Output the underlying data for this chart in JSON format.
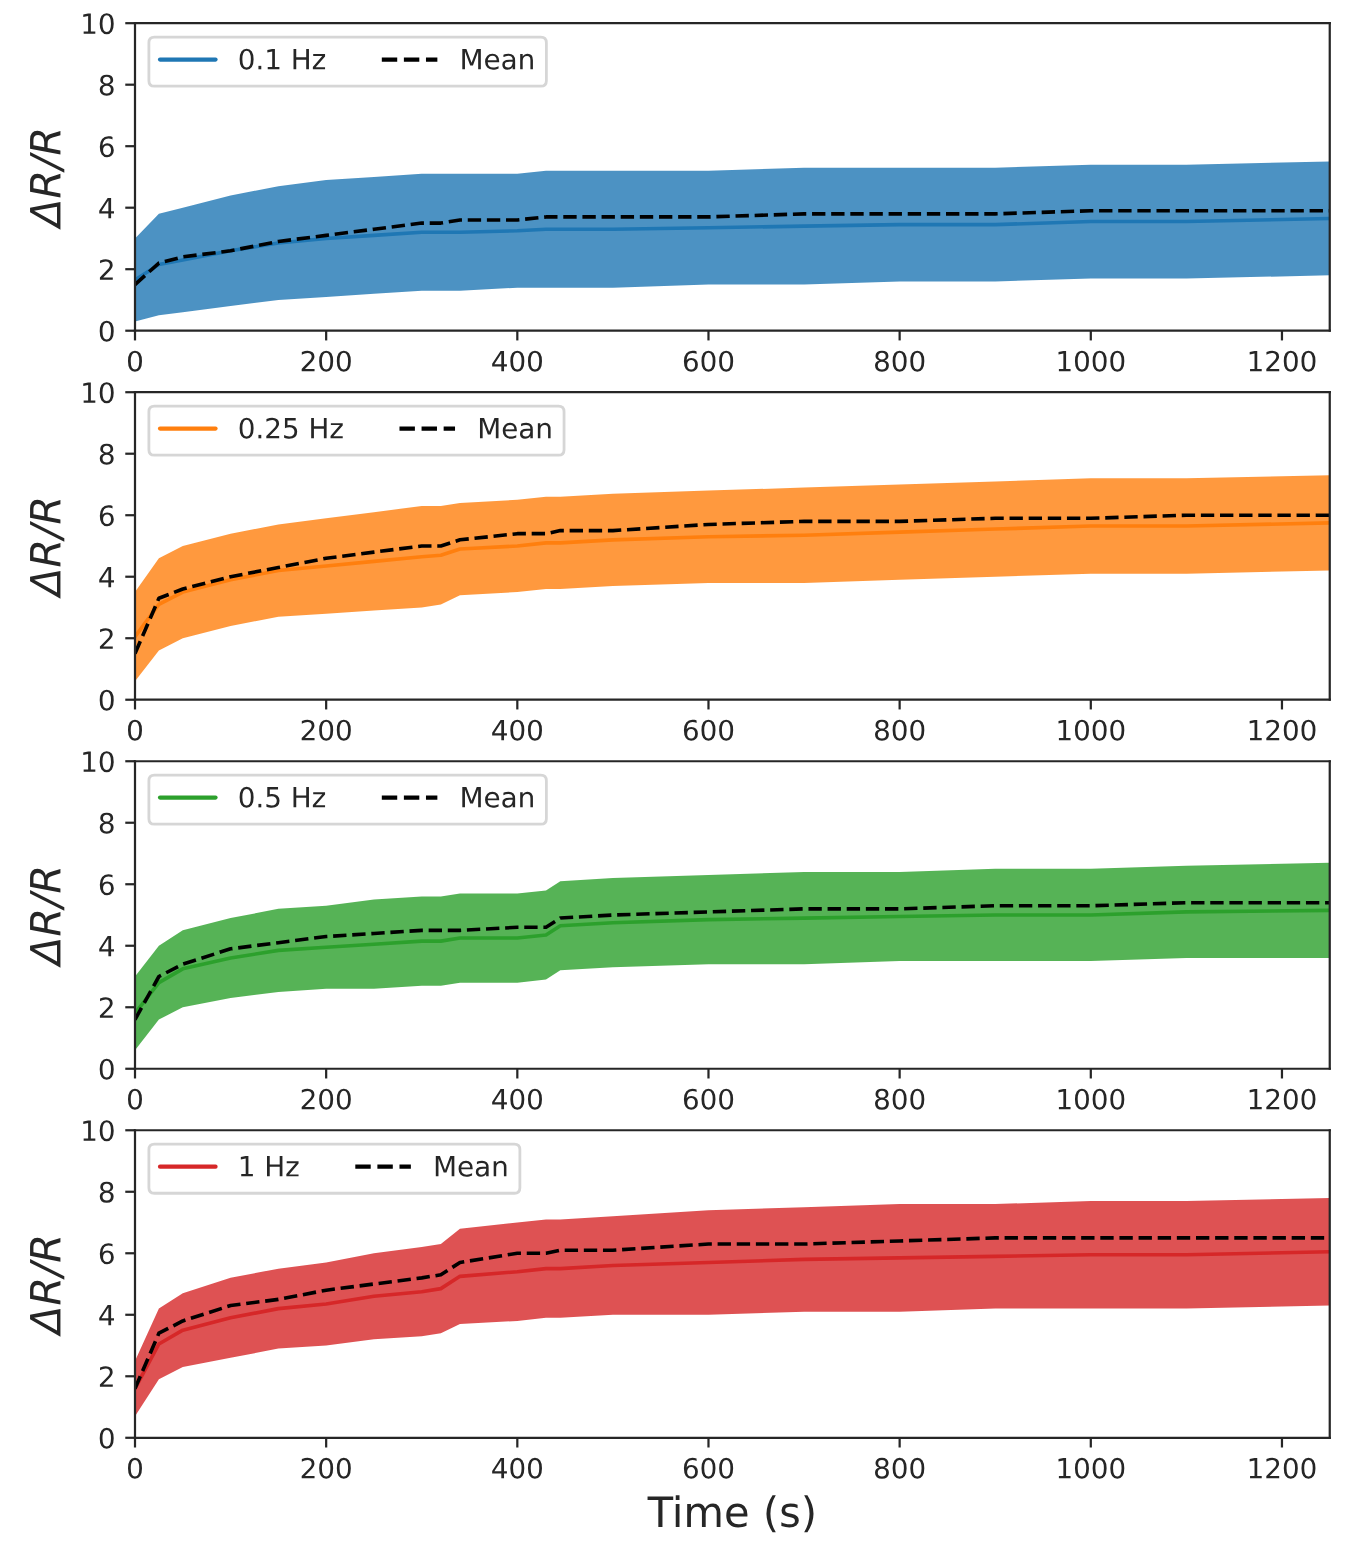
{
  "chart_data": [
    {
      "type": "line",
      "ylabel": "ΔR/R",
      "xlim": [
        0,
        1250
      ],
      "xticks": [
        0,
        200,
        400,
        600,
        800,
        1000,
        1200
      ],
      "ylim": [
        0,
        10
      ],
      "yticks": [
        0,
        2,
        4,
        6,
        8,
        10
      ],
      "legend": "top left",
      "x": [
        0,
        25,
        50,
        100,
        150,
        200,
        250,
        300,
        320,
        340,
        400,
        430,
        445,
        500,
        600,
        700,
        800,
        900,
        1000,
        1100,
        1250
      ],
      "series": [
        {
          "name": "0.1 Hz",
          "color": "#1f77b4",
          "values": [
            1.65,
            2.15,
            2.3,
            2.6,
            2.85,
            3.0,
            3.1,
            3.2,
            3.2,
            3.2,
            3.25,
            3.3,
            3.3,
            3.3,
            3.35,
            3.4,
            3.45,
            3.45,
            3.55,
            3.55,
            3.65
          ],
          "lower": [
            0.3,
            0.5,
            0.6,
            0.8,
            1.0,
            1.1,
            1.2,
            1.3,
            1.3,
            1.3,
            1.4,
            1.4,
            1.4,
            1.4,
            1.5,
            1.5,
            1.6,
            1.6,
            1.7,
            1.7,
            1.8
          ],
          "upper": [
            3.0,
            3.8,
            4.0,
            4.4,
            4.7,
            4.9,
            5.0,
            5.1,
            5.1,
            5.1,
            5.1,
            5.2,
            5.2,
            5.2,
            5.2,
            5.3,
            5.3,
            5.3,
            5.4,
            5.4,
            5.5
          ]
        },
        {
          "name": "Mean",
          "color": "#000000",
          "line_style": "dashed",
          "values": [
            1.5,
            2.2,
            2.4,
            2.6,
            2.9,
            3.1,
            3.3,
            3.5,
            3.5,
            3.6,
            3.6,
            3.7,
            3.7,
            3.7,
            3.7,
            3.8,
            3.8,
            3.8,
            3.9,
            3.9,
            3.9
          ]
        }
      ]
    },
    {
      "type": "line",
      "ylabel": "ΔR/R",
      "xlim": [
        0,
        1250
      ],
      "xticks": [
        0,
        200,
        400,
        600,
        800,
        1000,
        1200
      ],
      "ylim": [
        0,
        10
      ],
      "yticks": [
        0,
        2,
        4,
        6,
        8,
        10
      ],
      "legend": "top left",
      "x": [
        0,
        25,
        50,
        100,
        150,
        200,
        250,
        300,
        320,
        340,
        400,
        430,
        445,
        500,
        600,
        700,
        800,
        900,
        1000,
        1100,
        1250
      ],
      "series": [
        {
          "name": "0.25 Hz",
          "color": "#ff7f0e",
          "values": [
            2.05,
            3.1,
            3.5,
            3.9,
            4.2,
            4.35,
            4.5,
            4.65,
            4.7,
            4.9,
            5.0,
            5.1,
            5.1,
            5.2,
            5.3,
            5.35,
            5.45,
            5.55,
            5.65,
            5.65,
            5.75
          ],
          "lower": [
            0.6,
            1.6,
            2.0,
            2.4,
            2.7,
            2.8,
            2.9,
            3.0,
            3.1,
            3.4,
            3.5,
            3.6,
            3.6,
            3.7,
            3.8,
            3.8,
            3.9,
            4.0,
            4.1,
            4.1,
            4.2
          ],
          "upper": [
            3.5,
            4.6,
            5.0,
            5.4,
            5.7,
            5.9,
            6.1,
            6.3,
            6.3,
            6.4,
            6.5,
            6.6,
            6.6,
            6.7,
            6.8,
            6.9,
            7.0,
            7.1,
            7.2,
            7.2,
            7.3
          ]
        },
        {
          "name": "Mean",
          "color": "#000000",
          "line_style": "dashed",
          "values": [
            1.5,
            3.3,
            3.6,
            4.0,
            4.3,
            4.6,
            4.8,
            5.0,
            5.0,
            5.2,
            5.4,
            5.4,
            5.5,
            5.5,
            5.7,
            5.8,
            5.8,
            5.9,
            5.9,
            6.0,
            6.0
          ]
        }
      ]
    },
    {
      "type": "line",
      "ylabel": "ΔR/R",
      "xlim": [
        0,
        1250
      ],
      "xticks": [
        0,
        200,
        400,
        600,
        800,
        1000,
        1200
      ],
      "ylim": [
        0,
        10
      ],
      "yticks": [
        0,
        2,
        4,
        6,
        8,
        10
      ],
      "legend": "top left",
      "x": [
        0,
        25,
        50,
        100,
        150,
        200,
        250,
        300,
        320,
        340,
        400,
        430,
        445,
        500,
        600,
        700,
        800,
        900,
        1000,
        1100,
        1250
      ],
      "series": [
        {
          "name": "0.5 Hz",
          "color": "#2ca02c",
          "values": [
            1.8,
            2.8,
            3.25,
            3.6,
            3.85,
            3.95,
            4.05,
            4.15,
            4.15,
            4.25,
            4.25,
            4.35,
            4.65,
            4.75,
            4.85,
            4.9,
            4.95,
            5.0,
            5.0,
            5.1,
            5.15
          ],
          "lower": [
            0.6,
            1.6,
            2.0,
            2.3,
            2.5,
            2.6,
            2.6,
            2.7,
            2.7,
            2.8,
            2.8,
            2.9,
            3.2,
            3.3,
            3.4,
            3.4,
            3.5,
            3.5,
            3.5,
            3.6,
            3.6
          ],
          "upper": [
            3.0,
            4.0,
            4.5,
            4.9,
            5.2,
            5.3,
            5.5,
            5.6,
            5.6,
            5.7,
            5.7,
            5.8,
            6.1,
            6.2,
            6.3,
            6.4,
            6.4,
            6.5,
            6.5,
            6.6,
            6.7
          ]
        },
        {
          "name": "Mean",
          "color": "#000000",
          "line_style": "dashed",
          "values": [
            1.6,
            3.0,
            3.4,
            3.9,
            4.1,
            4.3,
            4.4,
            4.5,
            4.5,
            4.5,
            4.6,
            4.6,
            4.9,
            5.0,
            5.1,
            5.2,
            5.2,
            5.3,
            5.3,
            5.4,
            5.4
          ]
        }
      ]
    },
    {
      "type": "line",
      "ylabel": "ΔR/R",
      "xlabel": "Time (s)",
      "xlim": [
        0,
        1250
      ],
      "xticks": [
        0,
        200,
        400,
        600,
        800,
        1000,
        1200
      ],
      "ylim": [
        0,
        10
      ],
      "yticks": [
        0,
        2,
        4,
        6,
        8,
        10
      ],
      "legend": "top left",
      "x": [
        0,
        25,
        50,
        100,
        150,
        200,
        250,
        300,
        320,
        340,
        400,
        430,
        445,
        500,
        600,
        700,
        800,
        900,
        1000,
        1100,
        1250
      ],
      "series": [
        {
          "name": "1 Hz",
          "color": "#d62728",
          "values": [
            1.6,
            3.05,
            3.5,
            3.9,
            4.2,
            4.35,
            4.6,
            4.75,
            4.85,
            5.25,
            5.4,
            5.5,
            5.5,
            5.6,
            5.7,
            5.8,
            5.85,
            5.9,
            5.95,
            5.95,
            6.05
          ],
          "lower": [
            0.7,
            1.9,
            2.3,
            2.6,
            2.9,
            3.0,
            3.2,
            3.3,
            3.4,
            3.7,
            3.8,
            3.9,
            3.9,
            4.0,
            4.0,
            4.1,
            4.1,
            4.2,
            4.2,
            4.2,
            4.3
          ],
          "upper": [
            2.5,
            4.2,
            4.7,
            5.2,
            5.5,
            5.7,
            6.0,
            6.2,
            6.3,
            6.8,
            7.0,
            7.1,
            7.1,
            7.2,
            7.4,
            7.5,
            7.6,
            7.6,
            7.7,
            7.7,
            7.8
          ]
        },
        {
          "name": "Mean",
          "color": "#000000",
          "line_style": "dashed",
          "values": [
            1.6,
            3.4,
            3.8,
            4.3,
            4.5,
            4.8,
            5.0,
            5.2,
            5.3,
            5.7,
            6.0,
            6.0,
            6.1,
            6.1,
            6.3,
            6.3,
            6.4,
            6.5,
            6.5,
            6.5,
            6.5
          ]
        }
      ]
    }
  ]
}
